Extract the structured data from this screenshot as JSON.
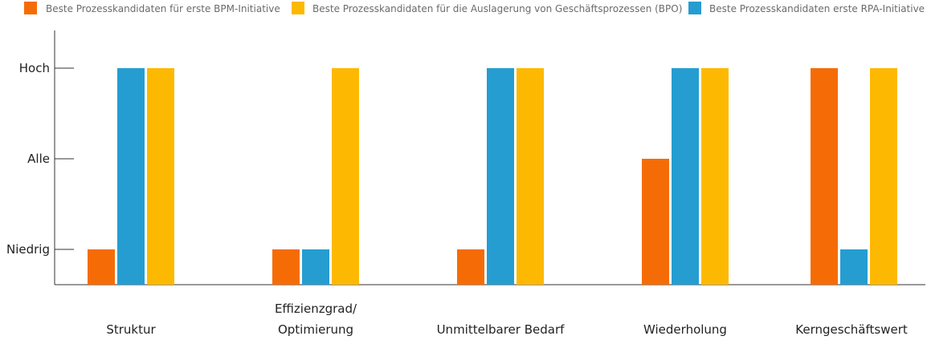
{
  "chart_data": {
    "type": "bar",
    "title": "",
    "xlabel": "",
    "ylabel": "",
    "levels": [
      "Niedrig",
      "Alle",
      "Hoch"
    ],
    "ylim": [
      0.6,
      3
    ],
    "legend_position": "top",
    "categories": [
      [
        "Struktur"
      ],
      [
        "Effizienzgrad/",
        "Optimierung"
      ],
      [
        "Unmittelbarer Bedarf"
      ],
      [
        "Wiederholung"
      ],
      [
        "Kerngeschäftswert"
      ]
    ],
    "series": [
      {
        "name": "Beste Prozesskandidaten für erste BPM-Initiative",
        "color": "#F56C07",
        "values": [
          1,
          1,
          1,
          2,
          3
        ]
      },
      {
        "name": "Beste Prozesskandidaten erste RPA-Initiative",
        "color": "#259DD1",
        "values": [
          3,
          1,
          3,
          3,
          1
        ]
      },
      {
        "name": "Beste Prozesskandidaten für die Auslagerung von Geschäftsprozessen (BPO)",
        "color": "#FDB902",
        "values": [
          3,
          3,
          3,
          3,
          3
        ]
      }
    ],
    "legend_order": [
      0,
      2,
      1
    ],
    "axis_color": "#333333",
    "grid": false
  }
}
